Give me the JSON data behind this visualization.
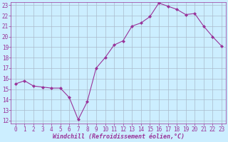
{
  "x": [
    0,
    1,
    2,
    3,
    4,
    5,
    6,
    7,
    8,
    9,
    10,
    11,
    12,
    13,
    14,
    15,
    16,
    17,
    18,
    19,
    20,
    21,
    22,
    23
  ],
  "y": [
    15.5,
    15.8,
    15.3,
    15.2,
    15.1,
    15.1,
    14.2,
    12.1,
    13.8,
    17.0,
    18.0,
    19.2,
    19.6,
    21.0,
    21.3,
    21.9,
    23.2,
    22.9,
    22.6,
    22.1,
    22.2,
    21.0,
    20.0,
    19.1
  ],
  "line_color": "#993399",
  "marker": "D",
  "marker_size": 2.0,
  "bg_color": "#cceeff",
  "grid_color": "#aabbcc",
  "xlabel": "Windchill (Refroidissement éolien,°C)",
  "xlabel_color": "#993399",
  "tick_color": "#993399",
  "ylim": [
    12,
    23
  ],
  "xlim": [
    -0.5,
    23.5
  ],
  "yticks": [
    12,
    13,
    14,
    15,
    16,
    17,
    18,
    19,
    20,
    21,
    22,
    23
  ],
  "xticks": [
    0,
    1,
    2,
    3,
    4,
    5,
    6,
    7,
    8,
    9,
    10,
    11,
    12,
    13,
    14,
    15,
    16,
    17,
    18,
    19,
    20,
    21,
    22,
    23
  ],
  "tick_fontsize": 5.5,
  "xlabel_fontsize": 6.0
}
